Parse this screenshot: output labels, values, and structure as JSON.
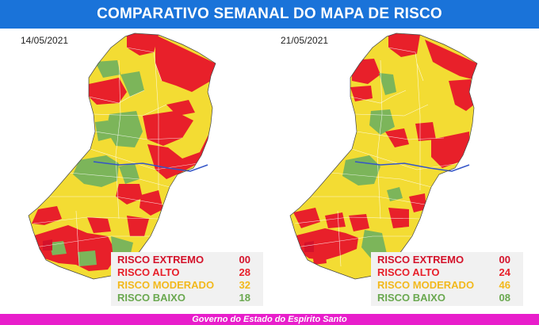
{
  "header": {
    "title": "COMPARATIVO SEMANAL DO MAPA DE RISCO"
  },
  "colors": {
    "header_bg": "#1a73d9",
    "footer_bg": "#e81ecb",
    "risco_extremo": "#d4122a",
    "risco_alto": "#e8202a",
    "risco_moderado": "#f3dc33",
    "risco_baixo": "#7cb55a",
    "legend_moderado_text": "#f2b91c",
    "legend_baixo_text": "#6aa84f",
    "river": "#3455c8"
  },
  "panels": [
    {
      "date": "14/05/2021",
      "legend": [
        {
          "label": "RISCO EXTREMO",
          "value": "00",
          "color": "#d4122a"
        },
        {
          "label": "RISCO ALTO",
          "value": "28",
          "color": "#e8202a"
        },
        {
          "label": "RISCO MODERADO",
          "value": "32",
          "color": "#f2b91c"
        },
        {
          "label": "RISCO BAIXO",
          "value": "18",
          "color": "#6aa84f"
        }
      ]
    },
    {
      "date": "21/05/2021",
      "legend": [
        {
          "label": "RISCO EXTREMO",
          "value": "00",
          "color": "#d4122a"
        },
        {
          "label": "RISCO ALTO",
          "value": "24",
          "color": "#e8202a"
        },
        {
          "label": "RISCO MODERADO",
          "value": "46",
          "color": "#f2b91c"
        },
        {
          "label": "RISCO BAIXO",
          "value": "08",
          "color": "#6aa84f"
        }
      ]
    }
  ],
  "footer": {
    "text": "Governo do Estado do Espírito Santo"
  }
}
